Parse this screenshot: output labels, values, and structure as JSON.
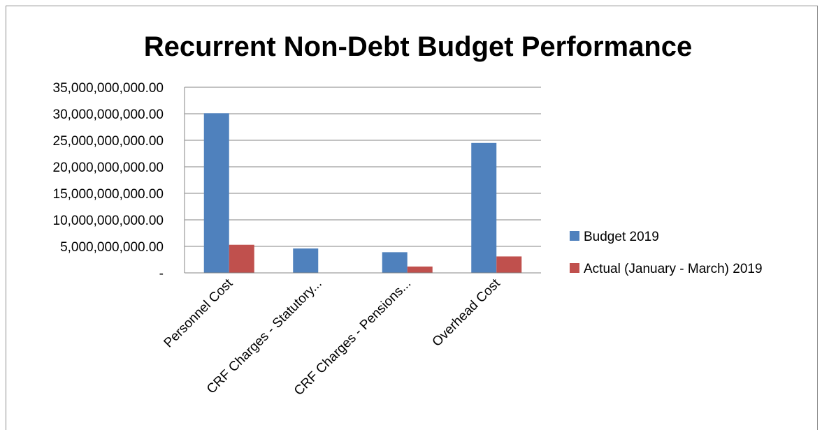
{
  "chart_data": {
    "type": "bar",
    "title": "Recurrent Non-Debt Budget Performance",
    "xlabel": "",
    "ylabel": "",
    "categories": [
      "Personnel Cost",
      "CRF Charges - Statutory...",
      "CRF Charges  - Pensions...",
      "Overhead Cost"
    ],
    "series": [
      {
        "name": "Budget 2019",
        "color": "#4F81BD",
        "values": [
          30100000000,
          4600000000,
          3900000000,
          24500000000
        ]
      },
      {
        "name": "Actual (January - March) 2019",
        "color": "#C0504D",
        "values": [
          5300000000,
          0,
          1200000000,
          3100000000
        ]
      }
    ],
    "ylim": [
      0,
      35000000000
    ],
    "yticks": [
      0,
      5000000000,
      10000000000,
      15000000000,
      20000000000,
      25000000000,
      30000000000,
      35000000000
    ],
    "ytick_labels": [
      "-",
      "5,000,000,000.00",
      "10,000,000,000.00",
      "15,000,000,000.00",
      "20,000,000,000.00",
      "25,000,000,000.00",
      "30,000,000,000.00",
      "35,000,000,000.00"
    ],
    "grid": true,
    "legend_position": "right"
  }
}
